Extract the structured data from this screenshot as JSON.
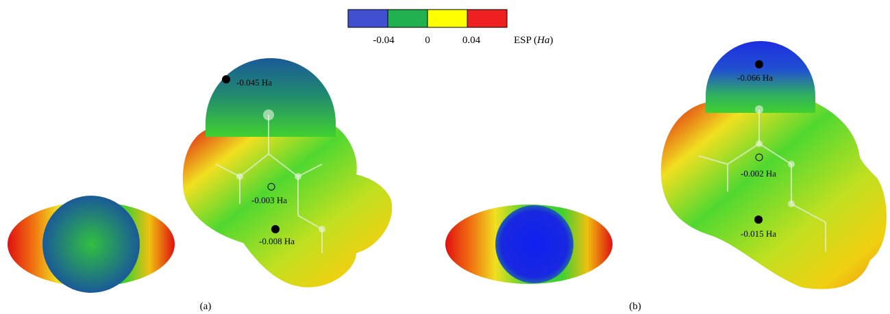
{
  "colorbar": {
    "ticks": [
      "-0.04",
      "0",
      "0.04"
    ],
    "label": {
      "prefix": "ESP (",
      "unit": "Ha",
      "suffix": ")"
    }
  },
  "panels": [
    {
      "caption": "(a)",
      "annotations": [
        "-0.045 Ha",
        "-0.003 Ha",
        "-0.008 Ha"
      ]
    },
    {
      "caption": "(b)",
      "annotations": [
        "-0.066 Ha",
        "-0.002 Ha",
        "-0.015 Ha"
      ]
    }
  ]
}
